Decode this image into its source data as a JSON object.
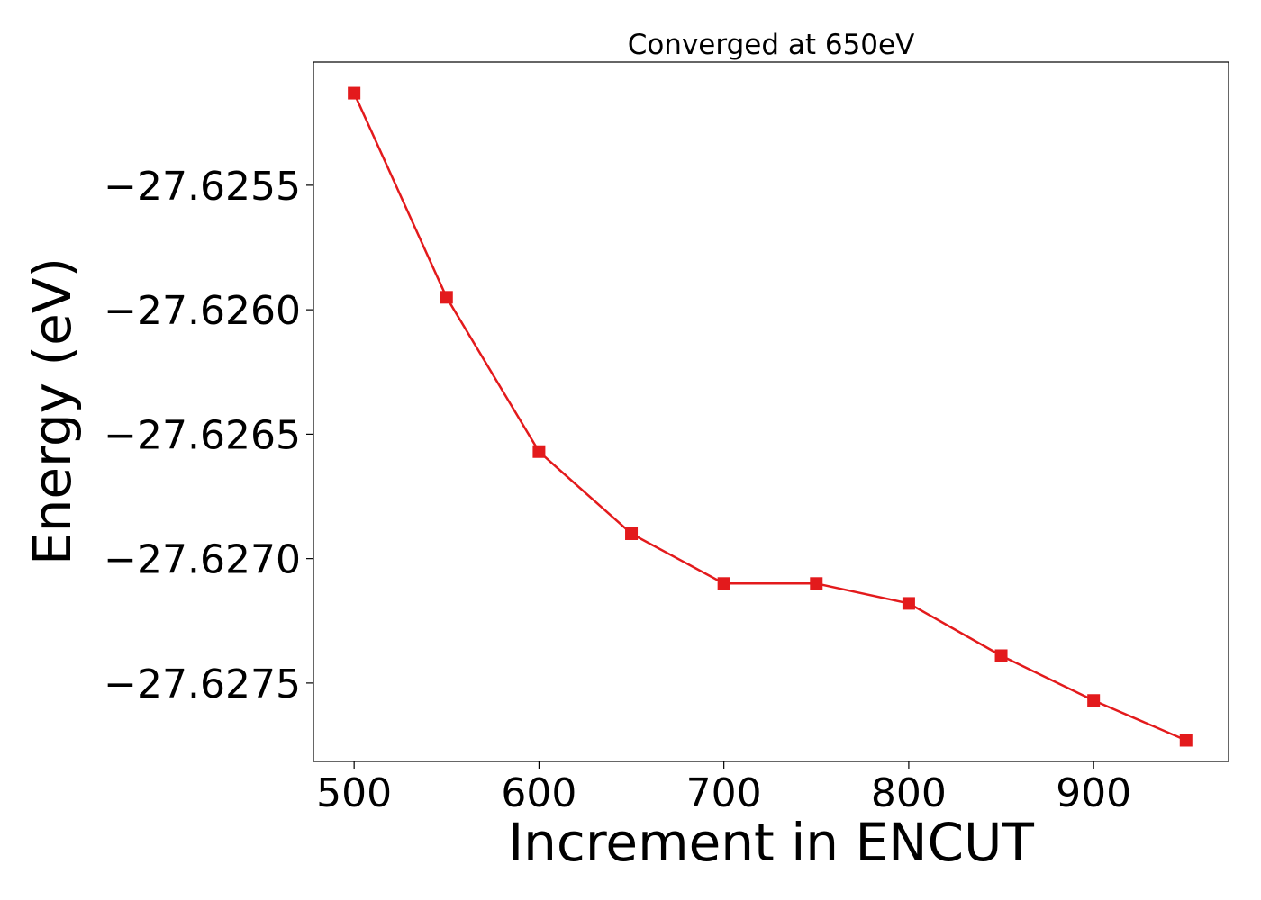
{
  "chart_data": {
    "type": "line",
    "title": "Converged at 650eV",
    "xlabel": "Increment in ENCUT",
    "ylabel": "Energy (eV)",
    "x": [
      500,
      550,
      600,
      650,
      700,
      750,
      800,
      850,
      900,
      950
    ],
    "series": [
      {
        "values": [
          -27.62513,
          -27.62595,
          -27.62657,
          -27.6269,
          -27.6271,
          -27.6271,
          -27.62718,
          -27.62739,
          -27.62757,
          -27.62773
        ],
        "color": "#e31a1c",
        "marker": "square"
      }
    ],
    "xlim": [
      478,
      973
    ],
    "ylim": [
      -27.627815,
      -27.625005
    ],
    "xticks": [
      500,
      600,
      700,
      800,
      900
    ],
    "xtick_labels": [
      "500",
      "600",
      "700",
      "800",
      "900"
    ],
    "yticks": [
      -27.6255,
      -27.626,
      -27.6265,
      -27.627,
      -27.6275
    ],
    "ytick_labels": [
      "−27.6255",
      "−27.6260",
      "−27.6265",
      "−27.6270",
      "−27.6275"
    ],
    "grid": false,
    "legend": "none"
  }
}
